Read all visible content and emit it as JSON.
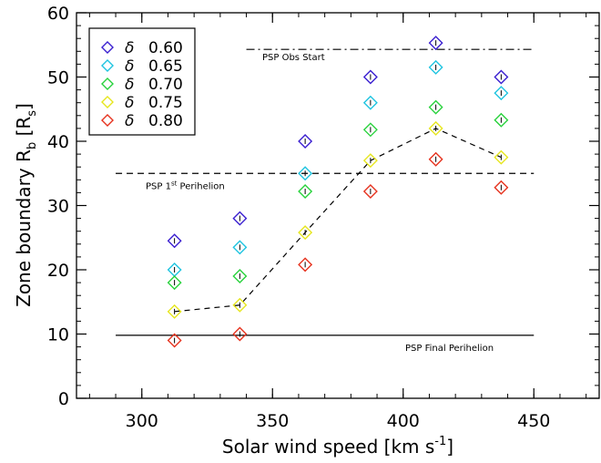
{
  "chart_data": {
    "type": "scatter",
    "xlabel": "Solar wind speed [km s",
    "xlabel_sup": "-1",
    "xlabel_tail": "]",
    "ylabel": "Zone boundary R",
    "ylabel_sub": "b",
    "ylabel_bracket_open": " [R",
    "ylabel_bracket_sub": "s",
    "ylabel_bracket_close": "]",
    "xlim": [
      275,
      475
    ],
    "ylim": [
      0,
      60
    ],
    "xticks": [
      300,
      350,
      400,
      450
    ],
    "yticks": [
      0,
      10,
      20,
      30,
      40,
      50,
      60
    ],
    "x_minor_step": 10,
    "y_minor_step": 2,
    "grid": false,
    "legend_placement": "top-left",
    "delta_symbol": "δ",
    "x": [
      312.5,
      337.5,
      362.5,
      387.5,
      412.5,
      437.5
    ],
    "series": [
      {
        "name": "0.60",
        "color": "#3a1fd0",
        "values": [
          24.5,
          28.0,
          40.0,
          50.0,
          55.3,
          50.0
        ]
      },
      {
        "name": "0.65",
        "color": "#1ec4e0",
        "values": [
          20.0,
          23.5,
          35.0,
          46.0,
          51.5,
          47.5
        ]
      },
      {
        "name": "0.70",
        "color": "#28d23c",
        "values": [
          18.0,
          19.0,
          32.2,
          41.8,
          45.3,
          43.3
        ]
      },
      {
        "name": "0.75",
        "color": "#e6e61e",
        "values": [
          13.5,
          14.5,
          25.8,
          37.0,
          42.0,
          37.5
        ]
      },
      {
        "name": "0.80",
        "color": "#e6321e",
        "values": [
          9.0,
          10.0,
          20.8,
          32.2,
          37.2,
          32.8
        ]
      }
    ],
    "trend_line": {
      "x": [
        312.5,
        337.5,
        362.5,
        387.5,
        412.5,
        437.5
      ],
      "y": [
        13.5,
        14.5,
        25.8,
        37.0,
        42.0,
        37.5
      ]
    },
    "reference_lines": [
      {
        "label": "PSP Obs Start",
        "y": 54.3,
        "x_from": 340,
        "x_to": 450,
        "style": "dashdot"
      },
      {
        "label": "PSP 1",
        "label_sup": "st",
        "label_tail": " Perihelion",
        "y": 35.0,
        "x_from": 290,
        "x_to": 450,
        "style": "dashed"
      },
      {
        "label": "PSP Final Perihelion",
        "y": 9.8,
        "x_from": 290,
        "x_to": 450,
        "style": "solid"
      }
    ]
  }
}
